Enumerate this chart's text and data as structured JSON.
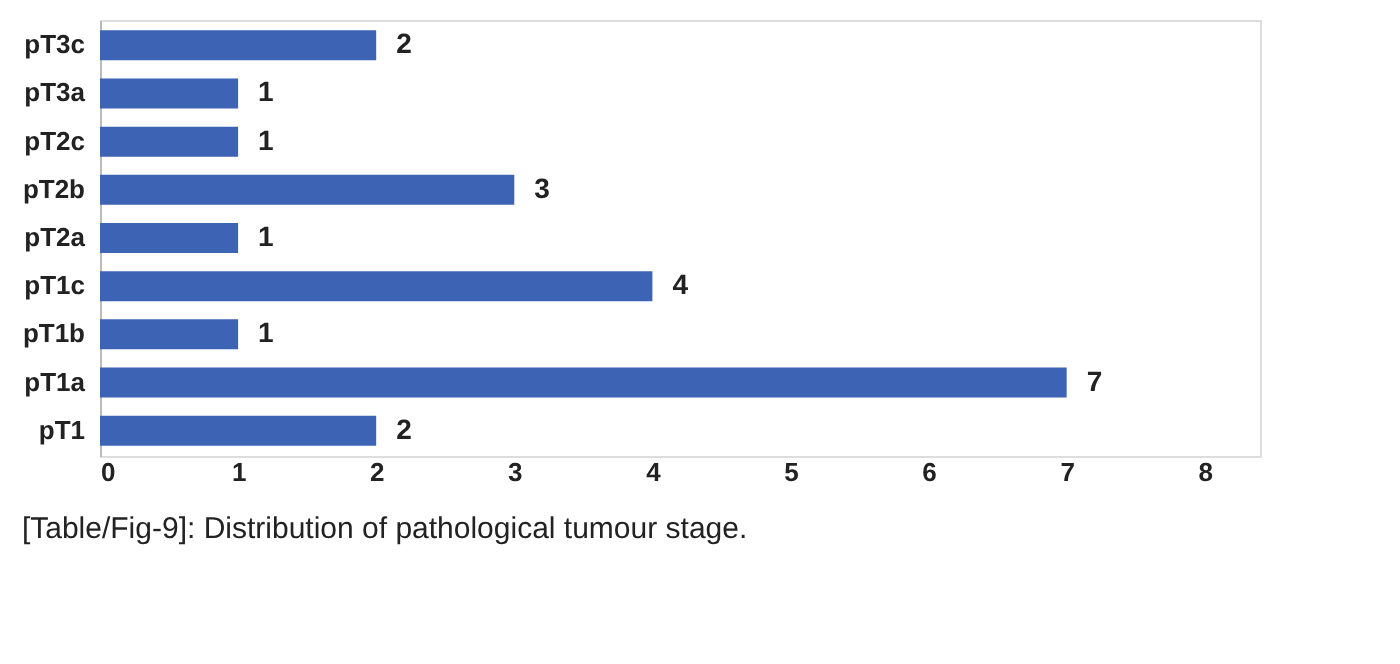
{
  "chart_data": {
    "type": "bar",
    "orientation": "horizontal",
    "categories": [
      "pT3c",
      "pT3a",
      "pT2c",
      "pT2b",
      "pT2a",
      "pT1c",
      "pT1b",
      "pT1a",
      "pT1"
    ],
    "values": [
      2,
      1,
      1,
      3,
      1,
      4,
      1,
      7,
      2
    ],
    "color": "#3d63b5",
    "xlim": [
      0,
      8.4
    ],
    "xticks": [
      0,
      1,
      2,
      3,
      4,
      5,
      6,
      7,
      8
    ],
    "grid": false,
    "data_labels": true,
    "annotations": [
      "[Table/Fig-9]: Distribution of pathological tumour stage."
    ]
  }
}
